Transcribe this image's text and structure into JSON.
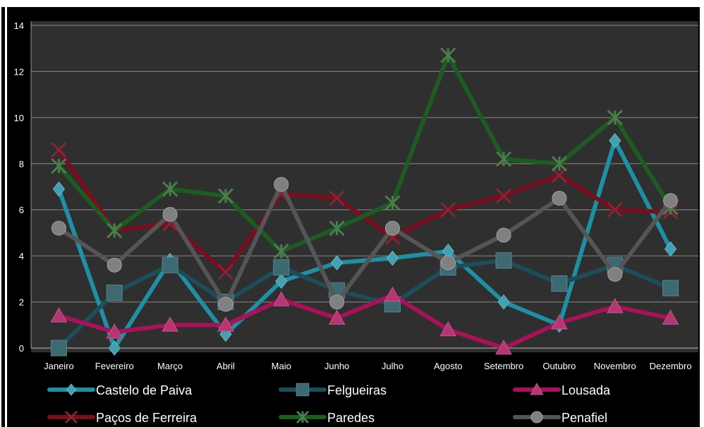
{
  "chart_data": {
    "type": "line",
    "title": "",
    "xlabel": "",
    "ylabel": "",
    "ylim": [
      0,
      14
    ],
    "yticks": [
      0,
      2,
      4,
      6,
      8,
      10,
      12,
      14
    ],
    "grid": true,
    "legend_position": "bottom",
    "background": "#000000",
    "categories": [
      "Janeiro",
      "Fevereiro",
      "Março",
      "Abril",
      "Maio",
      "Junho",
      "Julho",
      "Agosto",
      "Setembro",
      "Outubro",
      "Novembro",
      "Dezembro"
    ],
    "series": [
      {
        "name": "Castelo de Paiva",
        "color": "#1f8fa3",
        "marker": "diamond",
        "values": [
          6.9,
          0.0,
          3.8,
          0.6,
          2.9,
          3.7,
          3.9,
          4.2,
          2.0,
          1.0,
          9.0,
          4.3
        ]
      },
      {
        "name": "Felgueiras",
        "color": "#1b4e5a",
        "marker": "square",
        "values": [
          0.0,
          2.4,
          3.6,
          2.0,
          3.5,
          2.5,
          1.9,
          3.5,
          3.8,
          2.8,
          3.6,
          2.6
        ]
      },
      {
        "name": "Lousada",
        "color": "#a8125a",
        "marker": "triangle",
        "values": [
          1.4,
          0.7,
          1.0,
          1.0,
          2.1,
          1.3,
          2.3,
          0.8,
          0.0,
          1.1,
          1.8,
          1.3
        ]
      },
      {
        "name": "Paços de Ferreira",
        "color": "#7a0d1e",
        "marker": "x",
        "values": [
          8.6,
          5.1,
          5.4,
          3.3,
          6.7,
          6.5,
          4.8,
          6.0,
          6.6,
          7.5,
          6.0,
          5.9
        ]
      },
      {
        "name": "Paredes",
        "color": "#1d5c20",
        "marker": "star",
        "values": [
          7.9,
          5.1,
          6.9,
          6.6,
          4.2,
          5.2,
          6.3,
          12.7,
          8.2,
          8.0,
          10.0,
          6.1
        ]
      },
      {
        "name": "Penafiel",
        "color": "#555555",
        "marker": "circle",
        "values": [
          5.2,
          3.6,
          5.8,
          1.9,
          7.1,
          2.0,
          5.2,
          3.7,
          4.9,
          6.5,
          3.2,
          6.4
        ]
      }
    ]
  }
}
